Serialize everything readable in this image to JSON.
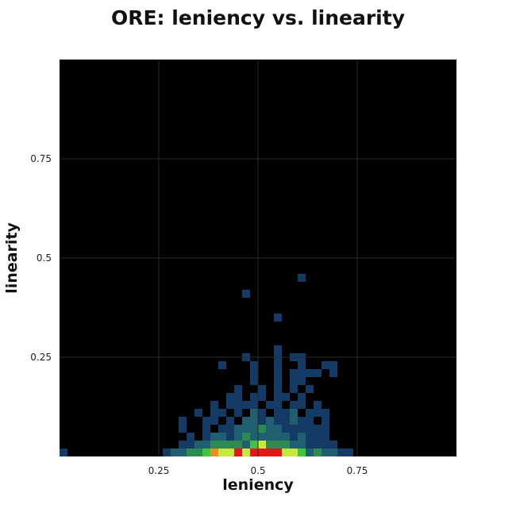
{
  "chart_data": {
    "type": "heatmap",
    "title": "ORE: leniency vs. linearity",
    "xlabel": "leniency",
    "ylabel": "linearity",
    "xlim": [
      0,
      1
    ],
    "ylim": [
      0,
      1
    ],
    "bin_size": 0.02,
    "xticks": [
      "0.25",
      "0.5",
      "0.75"
    ],
    "yticks": [
      "0.25",
      "0.5",
      "0.75"
    ],
    "grid": true,
    "colormap": [
      "#0a1f4e",
      "#143a66",
      "#1f6070",
      "#2e8a50",
      "#3fc43a",
      "#c8e838",
      "#e89020",
      "#e61616"
    ],
    "background_color": "#000000",
    "grid_color": "#2a2a2a",
    "cells": [
      {
        "x": 0.01,
        "y": 0.01,
        "level": 1
      },
      {
        "x": 0.27,
        "y": 0.01,
        "level": 1
      },
      {
        "x": 0.29,
        "y": 0.01,
        "level": 2
      },
      {
        "x": 0.31,
        "y": 0.01,
        "level": 2
      },
      {
        "x": 0.33,
        "y": 0.01,
        "level": 3
      },
      {
        "x": 0.35,
        "y": 0.01,
        "level": 3
      },
      {
        "x": 0.37,
        "y": 0.01,
        "level": 4
      },
      {
        "x": 0.39,
        "y": 0.01,
        "level": 6
      },
      {
        "x": 0.41,
        "y": 0.01,
        "level": 5
      },
      {
        "x": 0.43,
        "y": 0.01,
        "level": 5
      },
      {
        "x": 0.45,
        "y": 0.01,
        "level": 7
      },
      {
        "x": 0.47,
        "y": 0.01,
        "level": 5
      },
      {
        "x": 0.49,
        "y": 0.01,
        "level": 7
      },
      {
        "x": 0.51,
        "y": 0.01,
        "level": 7
      },
      {
        "x": 0.53,
        "y": 0.01,
        "level": 7
      },
      {
        "x": 0.55,
        "y": 0.01,
        "level": 7
      },
      {
        "x": 0.57,
        "y": 0.01,
        "level": 5
      },
      {
        "x": 0.59,
        "y": 0.01,
        "level": 5
      },
      {
        "x": 0.61,
        "y": 0.01,
        "level": 4
      },
      {
        "x": 0.63,
        "y": 0.01,
        "level": 2
      },
      {
        "x": 0.65,
        "y": 0.01,
        "level": 3
      },
      {
        "x": 0.67,
        "y": 0.01,
        "level": 2
      },
      {
        "x": 0.69,
        "y": 0.01,
        "level": 2
      },
      {
        "x": 0.71,
        "y": 0.01,
        "level": 1
      },
      {
        "x": 0.73,
        "y": 0.01,
        "level": 1
      },
      {
        "x": 0.31,
        "y": 0.03,
        "level": 1
      },
      {
        "x": 0.33,
        "y": 0.03,
        "level": 1
      },
      {
        "x": 0.35,
        "y": 0.03,
        "level": 2
      },
      {
        "x": 0.37,
        "y": 0.03,
        "level": 2
      },
      {
        "x": 0.39,
        "y": 0.03,
        "level": 3
      },
      {
        "x": 0.41,
        "y": 0.03,
        "level": 3
      },
      {
        "x": 0.43,
        "y": 0.03,
        "level": 3
      },
      {
        "x": 0.45,
        "y": 0.03,
        "level": 3
      },
      {
        "x": 0.47,
        "y": 0.03,
        "level": 2
      },
      {
        "x": 0.49,
        "y": 0.03,
        "level": 4
      },
      {
        "x": 0.51,
        "y": 0.03,
        "level": 5
      },
      {
        "x": 0.53,
        "y": 0.03,
        "level": 3
      },
      {
        "x": 0.55,
        "y": 0.03,
        "level": 3
      },
      {
        "x": 0.57,
        "y": 0.03,
        "level": 3
      },
      {
        "x": 0.59,
        "y": 0.03,
        "level": 2
      },
      {
        "x": 0.61,
        "y": 0.03,
        "level": 2
      },
      {
        "x": 0.63,
        "y": 0.03,
        "level": 1
      },
      {
        "x": 0.65,
        "y": 0.03,
        "level": 1
      },
      {
        "x": 0.67,
        "y": 0.03,
        "level": 1
      },
      {
        "x": 0.69,
        "y": 0.03,
        "level": 1
      },
      {
        "x": 0.33,
        "y": 0.05,
        "level": 1
      },
      {
        "x": 0.37,
        "y": 0.05,
        "level": 1
      },
      {
        "x": 0.39,
        "y": 0.05,
        "level": 2
      },
      {
        "x": 0.41,
        "y": 0.05,
        "level": 2
      },
      {
        "x": 0.43,
        "y": 0.05,
        "level": 1
      },
      {
        "x": 0.45,
        "y": 0.05,
        "level": 2
      },
      {
        "x": 0.47,
        "y": 0.05,
        "level": 3
      },
      {
        "x": 0.49,
        "y": 0.05,
        "level": 2
      },
      {
        "x": 0.51,
        "y": 0.05,
        "level": 2
      },
      {
        "x": 0.53,
        "y": 0.05,
        "level": 2
      },
      {
        "x": 0.55,
        "y": 0.05,
        "level": 2
      },
      {
        "x": 0.57,
        "y": 0.05,
        "level": 2
      },
      {
        "x": 0.59,
        "y": 0.05,
        "level": 1
      },
      {
        "x": 0.61,
        "y": 0.05,
        "level": 2
      },
      {
        "x": 0.63,
        "y": 0.05,
        "level": 1
      },
      {
        "x": 0.65,
        "y": 0.05,
        "level": 1
      },
      {
        "x": 0.67,
        "y": 0.05,
        "level": 1
      },
      {
        "x": 0.31,
        "y": 0.07,
        "level": 1
      },
      {
        "x": 0.37,
        "y": 0.07,
        "level": 1
      },
      {
        "x": 0.41,
        "y": 0.07,
        "level": 1
      },
      {
        "x": 0.43,
        "y": 0.07,
        "level": 1
      },
      {
        "x": 0.45,
        "y": 0.07,
        "level": 2
      },
      {
        "x": 0.47,
        "y": 0.07,
        "level": 2
      },
      {
        "x": 0.49,
        "y": 0.07,
        "level": 2
      },
      {
        "x": 0.51,
        "y": 0.07,
        "level": 3
      },
      {
        "x": 0.53,
        "y": 0.07,
        "level": 2
      },
      {
        "x": 0.55,
        "y": 0.07,
        "level": 2
      },
      {
        "x": 0.57,
        "y": 0.07,
        "level": 1
      },
      {
        "x": 0.59,
        "y": 0.07,
        "level": 1
      },
      {
        "x": 0.61,
        "y": 0.07,
        "level": 1
      },
      {
        "x": 0.63,
        "y": 0.07,
        "level": 1
      },
      {
        "x": 0.65,
        "y": 0.07,
        "level": 1
      },
      {
        "x": 0.67,
        "y": 0.07,
        "level": 1
      },
      {
        "x": 0.31,
        "y": 0.09,
        "level": 1
      },
      {
        "x": 0.37,
        "y": 0.09,
        "level": 1
      },
      {
        "x": 0.39,
        "y": 0.09,
        "level": 1
      },
      {
        "x": 0.43,
        "y": 0.09,
        "level": 1
      },
      {
        "x": 0.47,
        "y": 0.09,
        "level": 2
      },
      {
        "x": 0.49,
        "y": 0.09,
        "level": 2
      },
      {
        "x": 0.51,
        "y": 0.09,
        "level": 1
      },
      {
        "x": 0.53,
        "y": 0.09,
        "level": 2
      },
      {
        "x": 0.55,
        "y": 0.09,
        "level": 1
      },
      {
        "x": 0.57,
        "y": 0.09,
        "level": 1
      },
      {
        "x": 0.59,
        "y": 0.09,
        "level": 2
      },
      {
        "x": 0.61,
        "y": 0.09,
        "level": 1
      },
      {
        "x": 0.63,
        "y": 0.09,
        "level": 1
      },
      {
        "x": 0.67,
        "y": 0.09,
        "level": 1
      },
      {
        "x": 0.35,
        "y": 0.11,
        "level": 1
      },
      {
        "x": 0.39,
        "y": 0.11,
        "level": 1
      },
      {
        "x": 0.41,
        "y": 0.11,
        "level": 1
      },
      {
        "x": 0.45,
        "y": 0.11,
        "level": 1
      },
      {
        "x": 0.49,
        "y": 0.11,
        "level": 2
      },
      {
        "x": 0.51,
        "y": 0.11,
        "level": 1
      },
      {
        "x": 0.55,
        "y": 0.11,
        "level": 1
      },
      {
        "x": 0.57,
        "y": 0.11,
        "level": 1
      },
      {
        "x": 0.59,
        "y": 0.11,
        "level": 2
      },
      {
        "x": 0.63,
        "y": 0.11,
        "level": 1
      },
      {
        "x": 0.65,
        "y": 0.11,
        "level": 1
      },
      {
        "x": 0.67,
        "y": 0.11,
        "level": 1
      },
      {
        "x": 0.39,
        "y": 0.13,
        "level": 1
      },
      {
        "x": 0.43,
        "y": 0.13,
        "level": 1
      },
      {
        "x": 0.45,
        "y": 0.13,
        "level": 1
      },
      {
        "x": 0.47,
        "y": 0.13,
        "level": 1
      },
      {
        "x": 0.49,
        "y": 0.13,
        "level": 1
      },
      {
        "x": 0.53,
        "y": 0.13,
        "level": 1
      },
      {
        "x": 0.55,
        "y": 0.13,
        "level": 1
      },
      {
        "x": 0.59,
        "y": 0.13,
        "level": 1
      },
      {
        "x": 0.61,
        "y": 0.13,
        "level": 1
      },
      {
        "x": 0.65,
        "y": 0.13,
        "level": 1
      },
      {
        "x": 0.43,
        "y": 0.15,
        "level": 1
      },
      {
        "x": 0.45,
        "y": 0.15,
        "level": 1
      },
      {
        "x": 0.49,
        "y": 0.15,
        "level": 1
      },
      {
        "x": 0.51,
        "y": 0.15,
        "level": 1
      },
      {
        "x": 0.55,
        "y": 0.15,
        "level": 1
      },
      {
        "x": 0.57,
        "y": 0.15,
        "level": 1
      },
      {
        "x": 0.61,
        "y": 0.15,
        "level": 1
      },
      {
        "x": 0.45,
        "y": 0.17,
        "level": 1
      },
      {
        "x": 0.51,
        "y": 0.17,
        "level": 1
      },
      {
        "x": 0.55,
        "y": 0.17,
        "level": 1
      },
      {
        "x": 0.59,
        "y": 0.17,
        "level": 1
      },
      {
        "x": 0.63,
        "y": 0.17,
        "level": 1
      },
      {
        "x": 0.49,
        "y": 0.19,
        "level": 1
      },
      {
        "x": 0.55,
        "y": 0.19,
        "level": 1
      },
      {
        "x": 0.59,
        "y": 0.19,
        "level": 1
      },
      {
        "x": 0.61,
        "y": 0.19,
        "level": 1
      },
      {
        "x": 0.49,
        "y": 0.21,
        "level": 1
      },
      {
        "x": 0.55,
        "y": 0.21,
        "level": 1
      },
      {
        "x": 0.59,
        "y": 0.21,
        "level": 1
      },
      {
        "x": 0.61,
        "y": 0.21,
        "level": 1
      },
      {
        "x": 0.63,
        "y": 0.21,
        "level": 1
      },
      {
        "x": 0.65,
        "y": 0.21,
        "level": 1
      },
      {
        "x": 0.69,
        "y": 0.21,
        "level": 1
      },
      {
        "x": 0.41,
        "y": 0.23,
        "level": 1
      },
      {
        "x": 0.49,
        "y": 0.23,
        "level": 1
      },
      {
        "x": 0.55,
        "y": 0.23,
        "level": 1
      },
      {
        "x": 0.61,
        "y": 0.23,
        "level": 1
      },
      {
        "x": 0.67,
        "y": 0.23,
        "level": 1
      },
      {
        "x": 0.69,
        "y": 0.23,
        "level": 1
      },
      {
        "x": 0.47,
        "y": 0.25,
        "level": 1
      },
      {
        "x": 0.55,
        "y": 0.25,
        "level": 1
      },
      {
        "x": 0.59,
        "y": 0.25,
        "level": 1
      },
      {
        "x": 0.61,
        "y": 0.25,
        "level": 1
      },
      {
        "x": 0.55,
        "y": 0.27,
        "level": 1
      },
      {
        "x": 0.55,
        "y": 0.35,
        "level": 1
      },
      {
        "x": 0.47,
        "y": 0.41,
        "level": 1
      },
      {
        "x": 0.61,
        "y": 0.45,
        "level": 1
      }
    ]
  }
}
